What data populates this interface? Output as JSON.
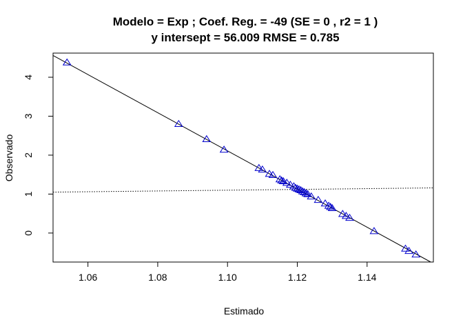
{
  "chart_data": {
    "type": "scatter",
    "title_line1": "Modelo =  Exp ; Coef. Reg. =  -49  (SE =  0 , r2 =  1 )",
    "title_line2": "y intersept =  56.009 RMSE =  0.785",
    "xlabel": "Estimado",
    "ylabel": "Observado",
    "xlim": [
      1.05,
      1.159
    ],
    "ylim": [
      -0.745,
      4.62
    ],
    "xticks": [
      1.06,
      1.08,
      1.1,
      1.12,
      1.14
    ],
    "xtick_labels": [
      "1.06",
      "1.08",
      "1.10",
      "1.12",
      "1.14"
    ],
    "yticks": [
      0,
      1,
      2,
      3,
      4
    ],
    "ytick_labels": [
      "0",
      "1",
      "2",
      "3",
      "4"
    ],
    "point_color": "#0000cd",
    "line_color": "#000000",
    "fit_line": {
      "intercept": 56.009,
      "slope": -49
    },
    "trend_line": {
      "x": [
        1.05,
        1.08,
        1.1,
        1.12,
        1.14,
        1.159
      ],
      "y": [
        1.05,
        1.08,
        1.1,
        1.12,
        1.14,
        1.159
      ]
    },
    "points": {
      "x": [
        1.054,
        1.086,
        1.094,
        1.099,
        1.109,
        1.11,
        1.112,
        1.113,
        1.115,
        1.1155,
        1.116,
        1.117,
        1.118,
        1.119,
        1.1195,
        1.12,
        1.1205,
        1.121,
        1.1215,
        1.122,
        1.1225,
        1.123,
        1.124,
        1.126,
        1.128,
        1.129,
        1.1295,
        1.13,
        1.133,
        1.134,
        1.135,
        1.142,
        1.151,
        1.152,
        1.154
      ],
      "y": [
        4.38,
        2.8,
        2.41,
        2.14,
        1.67,
        1.63,
        1.52,
        1.49,
        1.38,
        1.35,
        1.33,
        1.29,
        1.24,
        1.2,
        1.16,
        1.14,
        1.12,
        1.1,
        1.07,
        1.05,
        1.02,
        1.0,
        0.94,
        0.85,
        0.76,
        0.7,
        0.67,
        0.64,
        0.49,
        0.44,
        0.39,
        0.05,
        -0.4,
        -0.46,
        -0.55
      ]
    }
  }
}
